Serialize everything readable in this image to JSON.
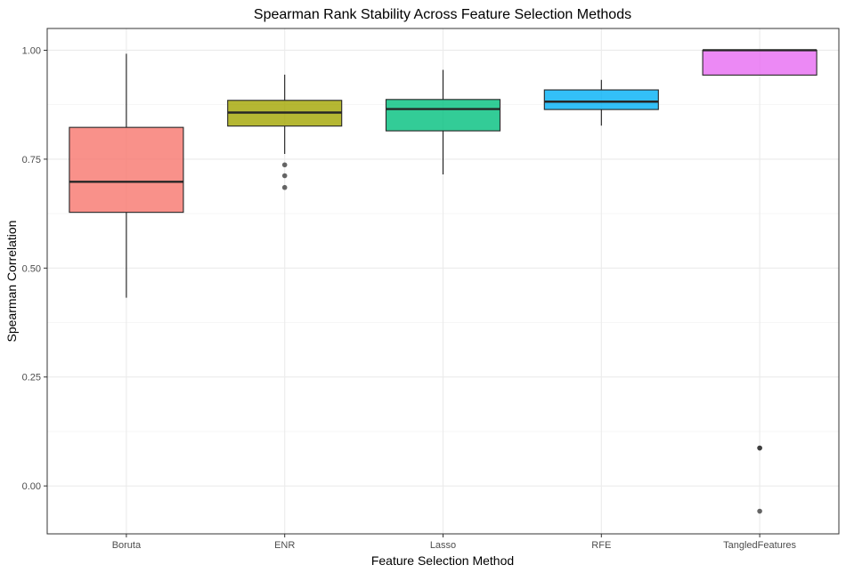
{
  "chart_data": {
    "type": "box",
    "title": "Spearman Rank Stability Across Feature Selection Methods",
    "xlabel": "Feature Selection Method",
    "ylabel": "Spearman Correlation",
    "ylim": [
      -0.11,
      1.05
    ],
    "yticks": [
      0.0,
      0.25,
      0.5,
      0.75,
      1.0
    ],
    "ytick_labels": [
      "0.00",
      "0.25",
      "0.50",
      "0.75",
      "1.00"
    ],
    "grid": true,
    "legend": "none",
    "categories": [
      "Boruta",
      "ENR",
      "Lasso",
      "RFE",
      "TangledFeatures"
    ],
    "boxes": [
      {
        "category": "Boruta",
        "color": "#F8766D",
        "whisker_low": 0.432,
        "q1": 0.628,
        "median": 0.698,
        "q3": 0.823,
        "whisker_high": 0.992,
        "outliers": []
      },
      {
        "category": "ENR",
        "color": "#A3A500",
        "whisker_low": 0.762,
        "q1": 0.826,
        "median": 0.857,
        "q3": 0.885,
        "whisker_high": 0.944,
        "outliers": [
          0.737,
          0.712,
          0.685
        ]
      },
      {
        "category": "Lasso",
        "color": "#00BF7D",
        "whisker_low": 0.715,
        "q1": 0.815,
        "median": 0.865,
        "q3": 0.887,
        "whisker_high": 0.955,
        "outliers": []
      },
      {
        "category": "RFE",
        "color": "#00B0F6",
        "whisker_low": 0.827,
        "q1": 0.864,
        "median": 0.882,
        "q3": 0.909,
        "whisker_high": 0.932,
        "outliers": []
      },
      {
        "category": "TangledFeatures",
        "color": "#E76BF3",
        "whisker_low": 0.943,
        "q1": 0.943,
        "median": 1.0,
        "q3": 1.0,
        "whisker_high": 1.0,
        "outliers": [
          0.087,
          0.087,
          -0.058
        ]
      }
    ]
  }
}
